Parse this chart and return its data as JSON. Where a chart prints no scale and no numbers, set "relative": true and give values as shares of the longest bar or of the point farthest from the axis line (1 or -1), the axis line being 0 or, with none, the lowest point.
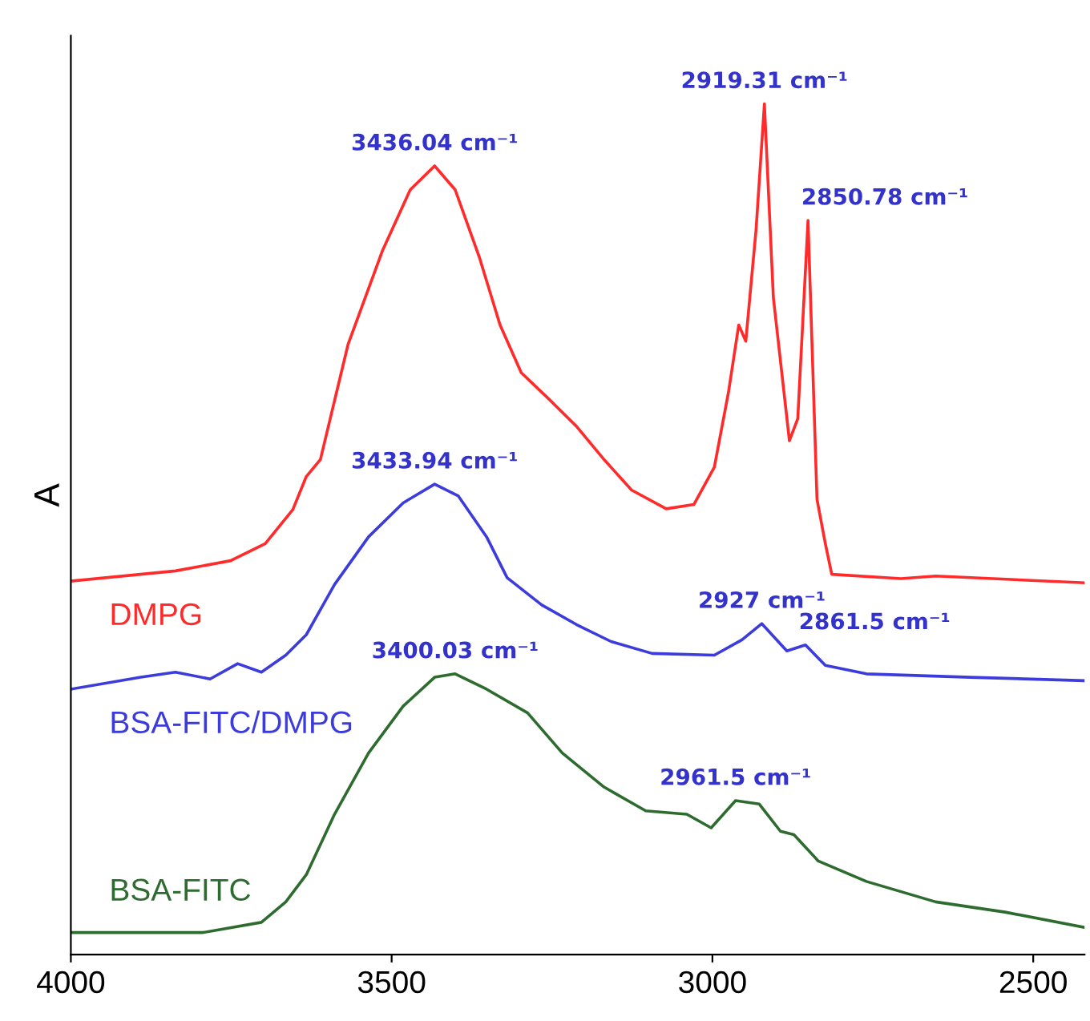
{
  "chart_data": {
    "type": "line",
    "relative": true,
    "ylabel": "A",
    "xlim": [
      4000,
      2420
    ],
    "xticks": [
      4000,
      3500,
      3000,
      2500
    ],
    "tick_labels": "x",
    "grid": false,
    "legend": false,
    "marker": "none",
    "line_style": "solid",
    "series": [
      {
        "name": "DMPG",
        "color": "#ff2a2a",
        "x": [
          4000,
          3837,
          3751,
          3697,
          3654,
          3633,
          3611,
          3568,
          3514,
          3471,
          3433,
          3401,
          3363,
          3331,
          3298,
          3255,
          3212,
          3169,
          3126,
          3072,
          3029,
          2997,
          2975,
          2959,
          2948,
          2932,
          2919,
          2905,
          2880,
          2867,
          2851,
          2837,
          2824,
          2814,
          2706,
          2652,
          2420
        ],
        "values": [
          0.439,
          0.451,
          0.463,
          0.483,
          0.523,
          0.562,
          0.582,
          0.717,
          0.828,
          0.899,
          0.927,
          0.899,
          0.819,
          0.74,
          0.684,
          0.653,
          0.621,
          0.582,
          0.546,
          0.524,
          0.529,
          0.573,
          0.661,
          0.74,
          0.721,
          0.852,
          1.0,
          0.772,
          0.604,
          0.63,
          0.863,
          0.535,
          0.483,
          0.447,
          0.442,
          0.445,
          0.437
        ]
      },
      {
        "name": "BSA-FITC/DMPG",
        "color": "#3c3cdc",
        "x": [
          4000,
          3891,
          3837,
          3783,
          3740,
          3703,
          3665,
          3633,
          3589,
          3536,
          3482,
          3433,
          3396,
          3352,
          3320,
          3266,
          3212,
          3158,
          3094,
          2997,
          2954,
          2923,
          2884,
          2855,
          2824,
          2760,
          2598,
          2420
        ],
        "values": [
          0.312,
          0.326,
          0.332,
          0.324,
          0.342,
          0.332,
          0.352,
          0.376,
          0.435,
          0.491,
          0.531,
          0.553,
          0.539,
          0.491,
          0.443,
          0.411,
          0.388,
          0.368,
          0.354,
          0.352,
          0.37,
          0.389,
          0.357,
          0.364,
          0.34,
          0.33,
          0.326,
          0.322
        ]
      },
      {
        "name": "BSA-FITC",
        "color": "#2e6b2e",
        "x": [
          4000,
          3794,
          3703,
          3665,
          3633,
          3589,
          3536,
          3482,
          3433,
          3401,
          3352,
          3288,
          3234,
          3169,
          3104,
          3040,
          3002,
          2964,
          2927,
          2894,
          2873,
          2835,
          2760,
          2652,
          2544,
          2420
        ],
        "values": [
          0.026,
          0.026,
          0.038,
          0.062,
          0.094,
          0.165,
          0.237,
          0.292,
          0.326,
          0.33,
          0.312,
          0.284,
          0.237,
          0.197,
          0.169,
          0.165,
          0.149,
          0.181,
          0.177,
          0.145,
          0.141,
          0.11,
          0.086,
          0.062,
          0.05,
          0.032
        ]
      }
    ],
    "annotations": [
      {
        "text": "3436.04 cm⁻¹",
        "x": 3433,
        "y": 0.927
      },
      {
        "text": "2919.31 cm⁻¹",
        "x": 2919,
        "y": 1.0
      },
      {
        "text": "2850.78 cm⁻¹",
        "x": 2851,
        "y": 0.863
      },
      {
        "text": "3433.94 cm⁻¹",
        "x": 3433,
        "y": 0.553
      },
      {
        "text": "2927 cm⁻¹",
        "x": 2923,
        "y": 0.389
      },
      {
        "text": "2861.5 cm⁻¹",
        "x": 2855,
        "y": 0.364
      },
      {
        "text": "3400.03 cm⁻¹",
        "x": 3401,
        "y": 0.33
      },
      {
        "text": "2961.5 cm⁻¹",
        "x": 2964,
        "y": 0.181
      }
    ]
  }
}
